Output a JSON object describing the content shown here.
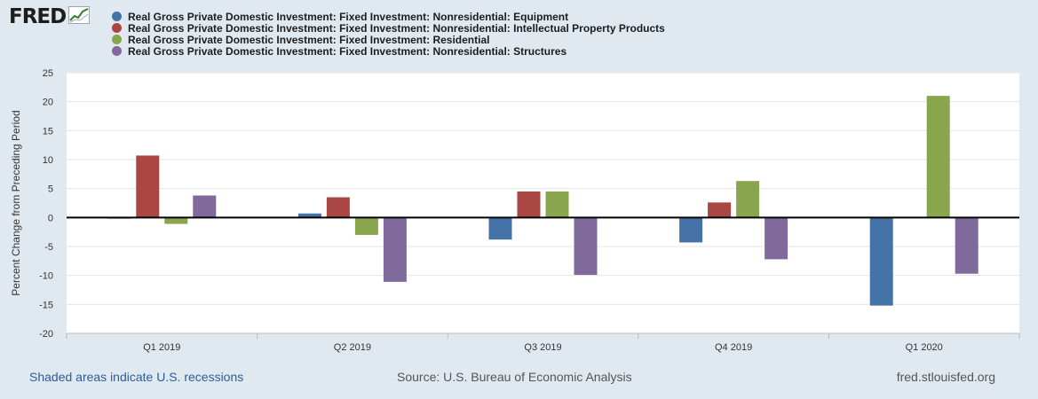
{
  "header": {
    "logo_text": "FRED",
    "logo_icon": "line-chart-icon"
  },
  "chart_data": {
    "type": "bar",
    "categories": [
      "Q1 2019",
      "Q2 2019",
      "Q3 2019",
      "Q4 2019",
      "Q1 2020"
    ],
    "series": [
      {
        "name": "Real Gross Private Domestic Investment: Fixed Investment: Nonresidential: Equipment",
        "color": "#4572a7",
        "values": [
          -0.2,
          0.7,
          -3.8,
          -4.3,
          -15.2
        ]
      },
      {
        "name": "Real Gross Private Domestic Investment: Fixed Investment: Nonresidential: Intellectual Property Products",
        "color": "#aa4643",
        "values": [
          10.7,
          3.5,
          4.5,
          2.6,
          0.0
        ]
      },
      {
        "name": "Real Gross Private Domestic Investment: Fixed Investment: Residential",
        "color": "#89a54e",
        "values": [
          -1.1,
          -3.0,
          4.5,
          6.3,
          21.0
        ]
      },
      {
        "name": "Real Gross Private Domestic Investment: Fixed Investment: Nonresidential: Structures",
        "color": "#80699b",
        "values": [
          3.8,
          -11.1,
          -9.9,
          -7.2,
          -9.7
        ]
      }
    ],
    "ylabel": "Percent Change from Preceding Period",
    "ylim": [
      -20,
      25
    ],
    "yticks": [
      25,
      20,
      15,
      10,
      5,
      0,
      -5,
      -10,
      -15,
      -20
    ],
    "grid": true,
    "legend_position": "top"
  },
  "footer": {
    "left": "Shaded areas indicate U.S. recessions",
    "center": "Source: U.S. Bureau of Economic Analysis",
    "right": "fred.stlouisfed.org"
  }
}
